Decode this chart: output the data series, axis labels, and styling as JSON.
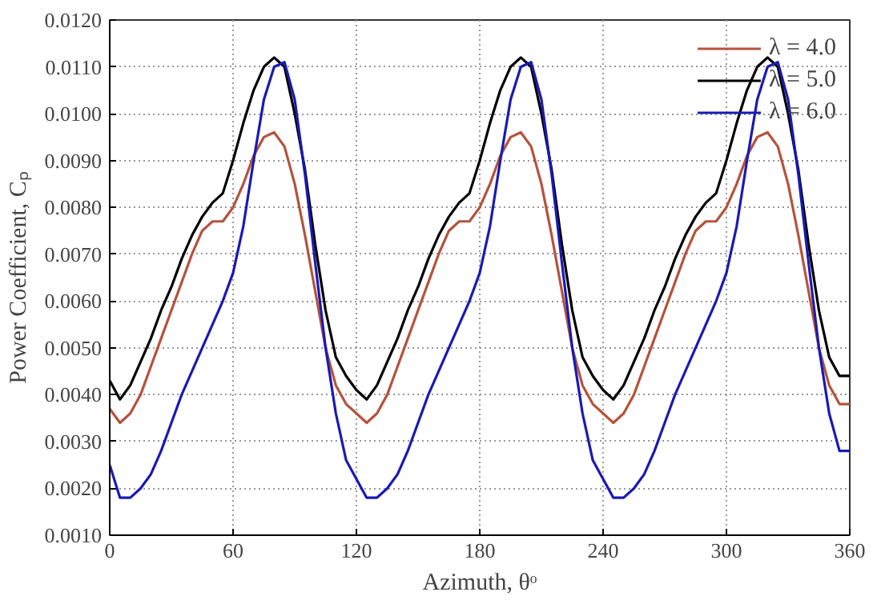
{
  "chart_data": {
    "type": "line",
    "xlabel": "Azimuth, θᵒ",
    "ylabel": "Power Coefficient, Cₚ",
    "x": [
      0,
      5,
      10,
      15,
      20,
      25,
      30,
      35,
      40,
      45,
      50,
      55,
      60,
      65,
      70,
      75,
      80,
      85,
      90,
      95,
      100,
      105,
      110,
      115,
      120,
      125,
      130,
      135,
      140,
      145,
      150,
      155,
      160,
      165,
      170,
      175,
      180,
      185,
      190,
      195,
      200,
      205,
      210,
      215,
      220,
      225,
      230,
      235,
      240,
      245,
      250,
      255,
      260,
      265,
      270,
      275,
      280,
      285,
      290,
      295,
      300,
      305,
      310,
      315,
      320,
      325,
      330,
      335,
      340,
      345,
      350,
      355,
      360
    ],
    "series": [
      {
        "name": "λ = 4.0",
        "color": "#b5533c",
        "values": [
          0.0037,
          0.0034,
          0.0036,
          0.004,
          0.0046,
          0.0052,
          0.0058,
          0.0064,
          0.007,
          0.0075,
          0.0077,
          0.0077,
          0.008,
          0.0085,
          0.0091,
          0.0095,
          0.0096,
          0.0093,
          0.0085,
          0.0074,
          0.0062,
          0.005,
          0.0042,
          0.0038,
          0.0036,
          0.0034,
          0.0036,
          0.004,
          0.0046,
          0.0052,
          0.0058,
          0.0064,
          0.007,
          0.0075,
          0.0077,
          0.0077,
          0.008,
          0.0085,
          0.0091,
          0.0095,
          0.0096,
          0.0093,
          0.0085,
          0.0074,
          0.0062,
          0.005,
          0.0042,
          0.0038,
          0.0036,
          0.0034,
          0.0036,
          0.004,
          0.0046,
          0.0052,
          0.0058,
          0.0064,
          0.007,
          0.0075,
          0.0077,
          0.0077,
          0.008,
          0.0085,
          0.0091,
          0.0095,
          0.0096,
          0.0093,
          0.0085,
          0.0074,
          0.0062,
          0.005,
          0.0042,
          0.0038,
          0.0038
        ]
      },
      {
        "name": "λ = 5.0",
        "color": "#000000",
        "values": [
          0.0043,
          0.0039,
          0.0042,
          0.0047,
          0.0052,
          0.0058,
          0.0063,
          0.0069,
          0.0074,
          0.0078,
          0.0081,
          0.0083,
          0.009,
          0.0098,
          0.0105,
          0.011,
          0.0112,
          0.011,
          0.01,
          0.0088,
          0.0072,
          0.0058,
          0.0048,
          0.0044,
          0.0041,
          0.0039,
          0.0042,
          0.0047,
          0.0052,
          0.0058,
          0.0063,
          0.0069,
          0.0074,
          0.0078,
          0.0081,
          0.0083,
          0.009,
          0.0098,
          0.0105,
          0.011,
          0.0112,
          0.011,
          0.01,
          0.0088,
          0.0072,
          0.0058,
          0.0048,
          0.0044,
          0.0041,
          0.0039,
          0.0042,
          0.0047,
          0.0052,
          0.0058,
          0.0063,
          0.0069,
          0.0074,
          0.0078,
          0.0081,
          0.0083,
          0.009,
          0.0098,
          0.0105,
          0.011,
          0.0112,
          0.011,
          0.01,
          0.0088,
          0.0072,
          0.0058,
          0.0048,
          0.0044,
          0.0044
        ]
      },
      {
        "name": "λ = 6.0",
        "color": "#1a1ab4",
        "values": [
          0.0025,
          0.0018,
          0.0018,
          0.002,
          0.0023,
          0.0028,
          0.0034,
          0.004,
          0.0045,
          0.005,
          0.0055,
          0.006,
          0.0066,
          0.0076,
          0.009,
          0.0103,
          0.011,
          0.0111,
          0.0103,
          0.0087,
          0.0068,
          0.005,
          0.0036,
          0.0026,
          0.0022,
          0.0018,
          0.0018,
          0.002,
          0.0023,
          0.0028,
          0.0034,
          0.004,
          0.0045,
          0.005,
          0.0055,
          0.006,
          0.0066,
          0.0076,
          0.009,
          0.0103,
          0.011,
          0.0111,
          0.0103,
          0.0087,
          0.0068,
          0.005,
          0.0036,
          0.0026,
          0.0022,
          0.0018,
          0.0018,
          0.002,
          0.0023,
          0.0028,
          0.0034,
          0.004,
          0.0045,
          0.005,
          0.0055,
          0.006,
          0.0066,
          0.0076,
          0.009,
          0.0103,
          0.011,
          0.0111,
          0.0103,
          0.0087,
          0.0068,
          0.005,
          0.0036,
          0.0028,
          0.0028
        ]
      }
    ],
    "xlim": [
      0,
      360
    ],
    "xticks": [
      0,
      60,
      120,
      180,
      240,
      300,
      360
    ],
    "ylim": [
      0.001,
      0.012
    ],
    "yticks": [
      {
        "value": 0.001,
        "label": "0.0010"
      },
      {
        "value": 0.002,
        "label": "0.0020"
      },
      {
        "value": 0.003,
        "label": "0.0030"
      },
      {
        "value": 0.004,
        "label": "0.0040"
      },
      {
        "value": 0.005,
        "label": "0.0050"
      },
      {
        "value": 0.006,
        "label": "0.0060"
      },
      {
        "value": 0.007,
        "label": "0.0070"
      },
      {
        "value": 0.008,
        "label": "0.0080"
      },
      {
        "value": 0.009,
        "label": "0.0090"
      },
      {
        "value": 0.01,
        "label": "0.0100"
      },
      {
        "value": 0.011,
        "label": "0.0110"
      },
      {
        "value": 0.012,
        "label": "0.0120"
      }
    ],
    "grid": true,
    "legend": "top right",
    "marker": "none",
    "line_style": "solid"
  }
}
